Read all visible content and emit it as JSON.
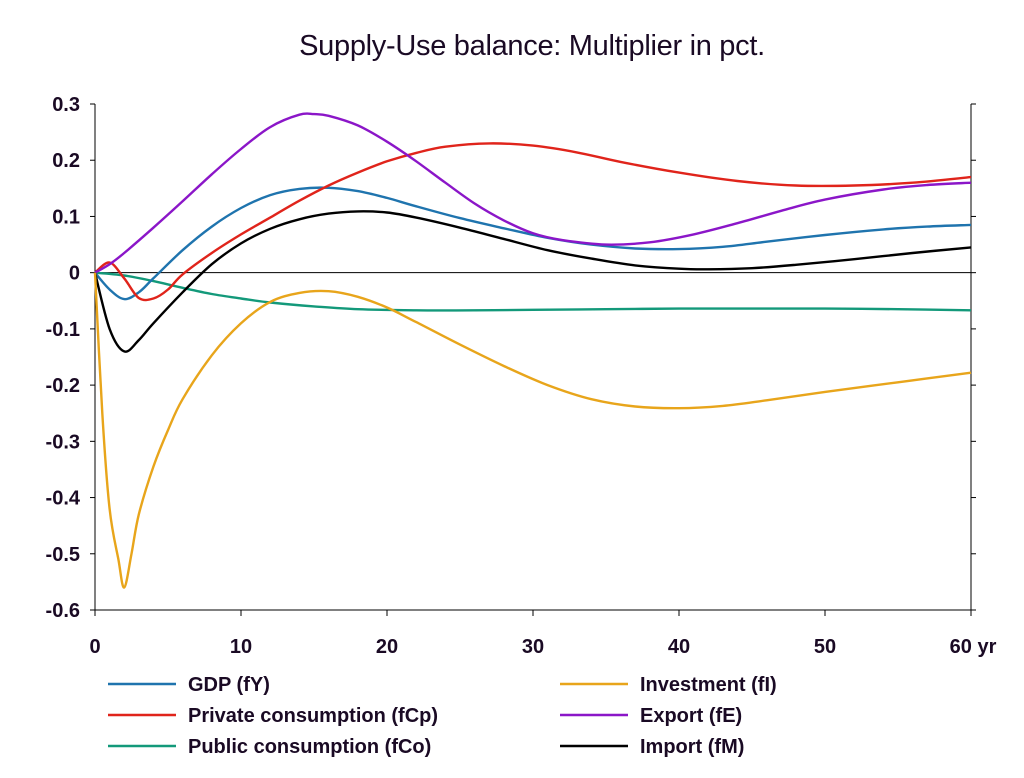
{
  "chart_data": {
    "type": "line",
    "title": "Supply-Use balance: Multiplier in pct.",
    "xlabel": "",
    "ylabel": "",
    "x_unit_label": "yr",
    "xlim": [
      0,
      60
    ],
    "ylim": [
      -0.6,
      0.3
    ],
    "xticks": [
      0,
      10,
      20,
      30,
      40,
      50,
      60
    ],
    "xtick_labels": [
      "0",
      "10",
      "20",
      "30",
      "40",
      "50",
      "60 yr"
    ],
    "yticks": [
      0.3,
      0.2,
      0.1,
      0,
      -0.1,
      -0.2,
      -0.3,
      -0.4,
      -0.5,
      -0.6
    ],
    "ytick_labels": [
      "0.3",
      "0.2",
      "0.1",
      "0",
      "-0.1",
      "-0.2",
      "-0.3",
      "-0.4",
      "-0.5",
      "-0.6"
    ],
    "grid": false,
    "zero_line": true,
    "legend_position": "bottom",
    "series": [
      {
        "name": "GDP (fY)",
        "color": "#1f74ae",
        "points": [
          [
            0,
            0
          ],
          [
            1,
            -0.03
          ],
          [
            2,
            -0.047
          ],
          [
            3,
            -0.035
          ],
          [
            4,
            -0.01
          ],
          [
            6,
            0.04
          ],
          [
            8,
            0.082
          ],
          [
            10,
            0.115
          ],
          [
            12,
            0.138
          ],
          [
            14,
            0.149
          ],
          [
            16,
            0.151
          ],
          [
            18,
            0.145
          ],
          [
            20,
            0.133
          ],
          [
            22,
            0.118
          ],
          [
            25,
            0.097
          ],
          [
            28,
            0.079
          ],
          [
            31,
            0.062
          ],
          [
            34,
            0.05
          ],
          [
            37,
            0.043
          ],
          [
            40,
            0.042
          ],
          [
            43,
            0.046
          ],
          [
            46,
            0.055
          ],
          [
            50,
            0.067
          ],
          [
            54,
            0.077
          ],
          [
            57,
            0.082
          ],
          [
            60,
            0.085
          ]
        ]
      },
      {
        "name": "Private consumption (fCp)",
        "color": "#e0241b",
        "points": [
          [
            0,
            0
          ],
          [
            1,
            0.018
          ],
          [
            2,
            -0.01
          ],
          [
            3,
            -0.045
          ],
          [
            4,
            -0.046
          ],
          [
            5,
            -0.03
          ],
          [
            6,
            -0.003
          ],
          [
            8,
            0.035
          ],
          [
            10,
            0.068
          ],
          [
            12,
            0.098
          ],
          [
            14,
            0.128
          ],
          [
            16,
            0.155
          ],
          [
            18,
            0.178
          ],
          [
            20,
            0.198
          ],
          [
            22,
            0.213
          ],
          [
            24,
            0.224
          ],
          [
            27,
            0.23
          ],
          [
            30,
            0.226
          ],
          [
            33,
            0.214
          ],
          [
            36,
            0.197
          ],
          [
            40,
            0.178
          ],
          [
            44,
            0.163
          ],
          [
            48,
            0.155
          ],
          [
            52,
            0.155
          ],
          [
            56,
            0.16
          ],
          [
            60,
            0.17
          ]
        ]
      },
      {
        "name": "Public consumption (fCo)",
        "color": "#13997a",
        "points": [
          [
            0,
            0
          ],
          [
            2,
            -0.005
          ],
          [
            4,
            -0.015
          ],
          [
            6,
            -0.027
          ],
          [
            8,
            -0.038
          ],
          [
            10,
            -0.046
          ],
          [
            12,
            -0.053
          ],
          [
            15,
            -0.06
          ],
          [
            18,
            -0.065
          ],
          [
            22,
            -0.067
          ],
          [
            26,
            -0.067
          ],
          [
            30,
            -0.066
          ],
          [
            35,
            -0.065
          ],
          [
            40,
            -0.064
          ],
          [
            45,
            -0.064
          ],
          [
            50,
            -0.064
          ],
          [
            55,
            -0.065
          ],
          [
            60,
            -0.067
          ]
        ]
      },
      {
        "name": "Investment (fI)",
        "color": "#e8a51b",
        "points": [
          [
            0,
            0
          ],
          [
            0.5,
            -0.25
          ],
          [
            1,
            -0.42
          ],
          [
            1.6,
            -0.51
          ],
          [
            2,
            -0.56
          ],
          [
            2.5,
            -0.5
          ],
          [
            3,
            -0.43
          ],
          [
            4,
            -0.345
          ],
          [
            5,
            -0.28
          ],
          [
            6,
            -0.225
          ],
          [
            8,
            -0.147
          ],
          [
            10,
            -0.09
          ],
          [
            12,
            -0.052
          ],
          [
            14,
            -0.036
          ],
          [
            16,
            -0.033
          ],
          [
            18,
            -0.043
          ],
          [
            20,
            -0.062
          ],
          [
            22,
            -0.088
          ],
          [
            25,
            -0.128
          ],
          [
            28,
            -0.166
          ],
          [
            31,
            -0.2
          ],
          [
            34,
            -0.225
          ],
          [
            37,
            -0.238
          ],
          [
            40,
            -0.241
          ],
          [
            43,
            -0.237
          ],
          [
            46,
            -0.227
          ],
          [
            50,
            -0.212
          ],
          [
            55,
            -0.195
          ],
          [
            60,
            -0.178
          ]
        ]
      },
      {
        "name": "Export (fE)",
        "color": "#8b16c8",
        "points": [
          [
            0,
            0
          ],
          [
            1,
            0.015
          ],
          [
            2,
            0.035
          ],
          [
            4,
            0.08
          ],
          [
            6,
            0.127
          ],
          [
            8,
            0.175
          ],
          [
            10,
            0.22
          ],
          [
            12,
            0.259
          ],
          [
            14,
            0.281
          ],
          [
            15,
            0.282
          ],
          [
            16,
            0.279
          ],
          [
            18,
            0.262
          ],
          [
            20,
            0.233
          ],
          [
            22,
            0.198
          ],
          [
            24,
            0.16
          ],
          [
            26,
            0.123
          ],
          [
            28,
            0.093
          ],
          [
            30,
            0.07
          ],
          [
            32,
            0.058
          ],
          [
            35,
            0.05
          ],
          [
            38,
            0.054
          ],
          [
            41,
            0.068
          ],
          [
            44,
            0.088
          ],
          [
            47,
            0.11
          ],
          [
            50,
            0.13
          ],
          [
            54,
            0.148
          ],
          [
            57,
            0.156
          ],
          [
            60,
            0.16
          ]
        ]
      },
      {
        "name": "Import (fM)",
        "color": "#000000",
        "points": [
          [
            0,
            0
          ],
          [
            1,
            -0.1
          ],
          [
            2,
            -0.14
          ],
          [
            3,
            -0.12
          ],
          [
            4,
            -0.09
          ],
          [
            6,
            -0.035
          ],
          [
            8,
            0.015
          ],
          [
            10,
            0.052
          ],
          [
            12,
            0.078
          ],
          [
            14,
            0.095
          ],
          [
            16,
            0.105
          ],
          [
            18,
            0.109
          ],
          [
            20,
            0.107
          ],
          [
            22,
            0.098
          ],
          [
            25,
            0.08
          ],
          [
            28,
            0.06
          ],
          [
            31,
            0.04
          ],
          [
            34,
            0.025
          ],
          [
            37,
            0.013
          ],
          [
            40,
            0.007
          ],
          [
            42,
            0.006
          ],
          [
            45,
            0.008
          ],
          [
            48,
            0.014
          ],
          [
            52,
            0.024
          ],
          [
            56,
            0.035
          ],
          [
            60,
            0.045
          ]
        ]
      }
    ]
  }
}
